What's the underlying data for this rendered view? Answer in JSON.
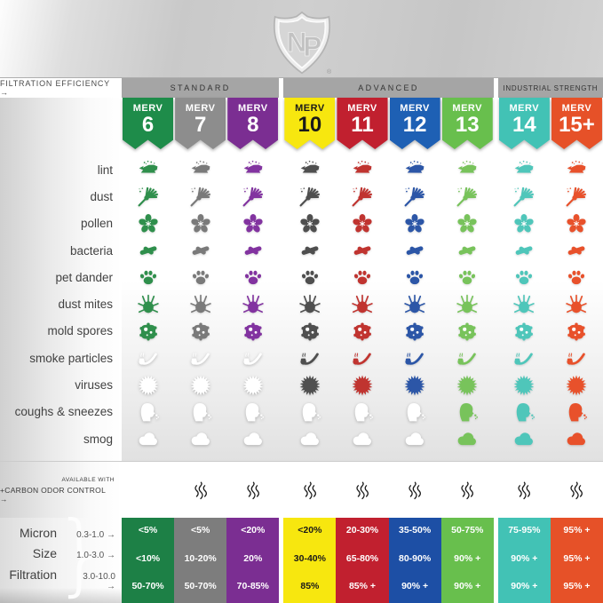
{
  "brand": {
    "logo_text": "NP",
    "registered_mark": "®"
  },
  "header": {
    "filtration_label": "FILTRATION EFFICIENCY →",
    "groups": [
      {
        "label": "STANDARD"
      },
      {
        "label": "ADVANCED"
      },
      {
        "label": "INDUSTRIAL STRENGTH"
      }
    ]
  },
  "ribbon": {
    "word": "MERV"
  },
  "columns": [
    {
      "number": "6",
      "ribbon_color": "#1e8c4a",
      "icon_color": "#2f8f4c",
      "table_color": "#1d8046",
      "text_color": "#ffffff",
      "value_text_color": "#ffffff"
    },
    {
      "number": "7",
      "ribbon_color": "#8d8d8d",
      "icon_color": "#7a7a7a",
      "table_color": "#7d7d7d",
      "text_color": "#ffffff",
      "value_text_color": "#ffffff"
    },
    {
      "number": "8",
      "ribbon_color": "#7b2e92",
      "icon_color": "#8233a0",
      "table_color": "#7b2e92",
      "text_color": "#ffffff",
      "value_text_color": "#ffffff"
    },
    {
      "number": "10",
      "ribbon_color": "#f7e70f",
      "icon_color": "#4f4f4f",
      "table_color": "#f7e70f",
      "text_color": "#1a1a1a",
      "value_text_color": "#1a1a1a"
    },
    {
      "number": "11",
      "ribbon_color": "#c1202f",
      "icon_color": "#c03430",
      "table_color": "#c1202f",
      "text_color": "#ffffff",
      "value_text_color": "#ffffff"
    },
    {
      "number": "12",
      "ribbon_color": "#1e60b4",
      "icon_color": "#2c56a7",
      "table_color": "#1d4fa5",
      "text_color": "#ffffff",
      "value_text_color": "#ffffff"
    },
    {
      "number": "13",
      "ribbon_color": "#68bf4d",
      "icon_color": "#78c35b",
      "table_color": "#68bf4d",
      "text_color": "#ffffff",
      "value_text_color": "#ffffff"
    },
    {
      "number": "14",
      "ribbon_color": "#42c2b5",
      "icon_color": "#4fc6ba",
      "table_color": "#42c2b5",
      "text_color": "#ffffff",
      "value_text_color": "#ffffff"
    },
    {
      "number": "15+",
      "ribbon_color": "#e65128",
      "icon_color": "#e8512b",
      "table_color": "#e65128",
      "text_color": "#ffffff",
      "value_text_color": "#ffffff"
    }
  ],
  "carbon_row": {
    "line1": "AVAILABLE WITH",
    "line2": "+CARBON ODOR CONTROL →",
    "icon": "steam-icon"
  },
  "chart_data": {
    "type": "table",
    "columns": [
      "MERV 6",
      "MERV 7",
      "MERV 8",
      "MERV 10",
      "MERV 11",
      "MERV 12",
      "MERV 13",
      "MERV 14",
      "MERV 15+"
    ],
    "column_groups": [
      {
        "label": "STANDARD",
        "columns": [
          "MERV 6",
          "MERV 7",
          "MERV 8"
        ]
      },
      {
        "label": "ADVANCED",
        "columns": [
          "MERV 10",
          "MERV 11",
          "MERV 12",
          "MERV 13"
        ]
      },
      {
        "label": "INDUSTRIAL STRENGTH",
        "columns": [
          "MERV 14",
          "MERV 15+"
        ]
      }
    ],
    "contaminants": [
      {
        "label": "lint",
        "icon": "lint-icon",
        "filtered_by_column": [
          true,
          true,
          true,
          true,
          true,
          true,
          true,
          true,
          true
        ]
      },
      {
        "label": "dust",
        "icon": "duster-icon",
        "filtered_by_column": [
          true,
          true,
          true,
          true,
          true,
          true,
          true,
          true,
          true
        ]
      },
      {
        "label": "pollen",
        "icon": "flower-icon",
        "filtered_by_column": [
          true,
          true,
          true,
          true,
          true,
          true,
          true,
          true,
          true
        ]
      },
      {
        "label": "bacteria",
        "icon": "bacteria-icon",
        "filtered_by_column": [
          true,
          true,
          true,
          true,
          true,
          true,
          true,
          true,
          true
        ]
      },
      {
        "label": "pet dander",
        "icon": "paw-icon",
        "filtered_by_column": [
          true,
          true,
          true,
          true,
          true,
          true,
          true,
          true,
          true
        ]
      },
      {
        "label": "dust mites",
        "icon": "mite-icon",
        "filtered_by_column": [
          true,
          true,
          true,
          true,
          true,
          true,
          true,
          true,
          true
        ]
      },
      {
        "label": "mold spores",
        "icon": "mold-icon",
        "filtered_by_column": [
          true,
          true,
          true,
          true,
          true,
          true,
          true,
          true,
          true
        ]
      },
      {
        "label": "smoke particles",
        "icon": "pipe-icon",
        "filtered_by_column": [
          false,
          false,
          false,
          true,
          true,
          true,
          true,
          true,
          true
        ]
      },
      {
        "label": "viruses",
        "icon": "virus-icon",
        "filtered_by_column": [
          false,
          false,
          false,
          true,
          true,
          true,
          true,
          true,
          true
        ]
      },
      {
        "label": "coughs & sneezes",
        "icon": "cough-icon",
        "filtered_by_column": [
          false,
          false,
          false,
          false,
          false,
          false,
          true,
          true,
          true
        ]
      },
      {
        "label": "smog",
        "icon": "smog-icon",
        "filtered_by_column": [
          false,
          false,
          false,
          false,
          false,
          false,
          true,
          true,
          true
        ]
      }
    ],
    "carbon_odor_control_by_column": [
      false,
      true,
      true,
      true,
      true,
      true,
      true,
      true,
      true
    ],
    "efficiency_table": {
      "row_headers": [
        {
          "label": "Micron",
          "range": "0.3-1.0 →"
        },
        {
          "label": "Size",
          "range": "1.0-3.0 →"
        },
        {
          "label": "Filtration",
          "range": "3.0-10.0 →"
        }
      ],
      "rows": [
        [
          "<5%",
          "<5%",
          "<20%",
          "<20%",
          "20-30%",
          "35-50%",
          "50-75%",
          "75-95%",
          "95% +"
        ],
        [
          "<10%",
          "10-20%",
          "20%",
          "30-40%",
          "65-80%",
          "80-90%",
          "90% +",
          "90% +",
          "95% +"
        ],
        [
          "50-70%",
          "50-70%",
          "70-85%",
          "85%",
          "85% +",
          "90% +",
          "90% +",
          "90% +",
          "95% +"
        ]
      ]
    }
  }
}
